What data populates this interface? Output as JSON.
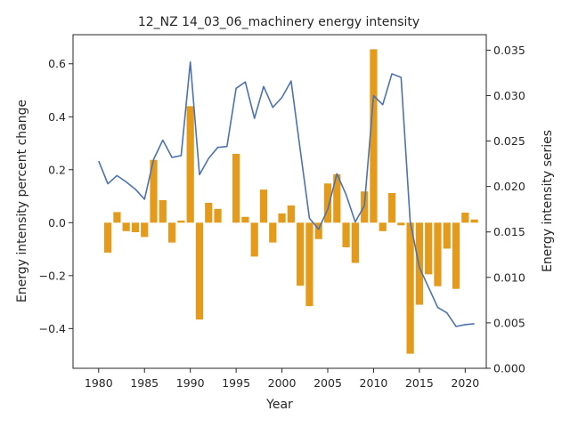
{
  "chart_data": {
    "type": "bar+line",
    "title": "12_NZ 14_03_06_machinery energy intensity",
    "xlabel": "Year",
    "ylabel_left": "Energy intensity percent change",
    "ylabel_right": "Energy intensity series",
    "xlim": [
      1977.2,
      2022.3
    ],
    "ylim_left": [
      -0.55,
      0.71
    ],
    "ylim_right": [
      0.0,
      0.0367
    ],
    "x_ticks": [
      1980,
      1985,
      1990,
      1995,
      2000,
      2005,
      2010,
      2015,
      2020
    ],
    "y_ticks_left": [
      -0.4,
      -0.2,
      0.0,
      0.2,
      0.4,
      0.6
    ],
    "y_ticks_right": [
      0.0,
      0.005,
      0.01,
      0.015,
      0.02,
      0.025,
      0.03,
      0.035
    ],
    "grid": false,
    "bar_series": {
      "name": "Energy intensity percent change",
      "axis": "left",
      "color": "#e49b1c",
      "x": [
        1981,
        1982,
        1983,
        1984,
        1985,
        1986,
        1987,
        1988,
        1989,
        1990,
        1991,
        1992,
        1993,
        1994,
        1995,
        1996,
        1997,
        1998,
        1999,
        2000,
        2001,
        2002,
        2003,
        2004,
        2005,
        2006,
        2007,
        2008,
        2009,
        2010,
        2011,
        2012,
        2013,
        2014,
        2015,
        2016,
        2017,
        2018,
        2019,
        2020,
        2021
      ],
      "values": [
        -0.113,
        0.04,
        -0.032,
        -0.036,
        -0.054,
        0.237,
        0.085,
        -0.075,
        0.008,
        0.44,
        -0.366,
        0.075,
        0.052,
        0.0,
        0.26,
        0.022,
        -0.128,
        0.125,
        -0.075,
        0.035,
        0.065,
        -0.238,
        -0.315,
        -0.062,
        0.148,
        0.183,
        -0.093,
        -0.152,
        0.118,
        0.655,
        -0.032,
        0.112,
        -0.01,
        -0.495,
        -0.31,
        -0.195,
        -0.24,
        -0.098,
        -0.25,
        0.038,
        0.012
      ]
    },
    "line_series": {
      "name": "Energy intensity series",
      "axis": "right",
      "color": "#4c72b0",
      "x": [
        1980,
        1981,
        1982,
        1983,
        1984,
        1985,
        1986,
        1987,
        1988,
        1989,
        1990,
        1991,
        1992,
        1993,
        1994,
        1995,
        1996,
        1997,
        1998,
        1999,
        2000,
        2001,
        2002,
        2003,
        2004,
        2005,
        2006,
        2007,
        2008,
        2009,
        2010,
        2011,
        2012,
        2013,
        2014,
        2015,
        2016,
        2017,
        2018,
        2019,
        2020,
        2021
      ],
      "values": [
        0.0228,
        0.0203,
        0.0212,
        0.0205,
        0.0197,
        0.0186,
        0.023,
        0.0251,
        0.0232,
        0.0234,
        0.0337,
        0.0213,
        0.0231,
        0.0243,
        0.0244,
        0.0308,
        0.0315,
        0.0275,
        0.031,
        0.0287,
        0.0298,
        0.0316,
        0.024,
        0.0165,
        0.0153,
        0.0175,
        0.0214,
        0.0191,
        0.0161,
        0.0179,
        0.03,
        0.029,
        0.0324,
        0.032,
        0.0161,
        0.0111,
        0.0089,
        0.0067,
        0.0061,
        0.0046,
        0.0048,
        0.0049
      ]
    }
  }
}
